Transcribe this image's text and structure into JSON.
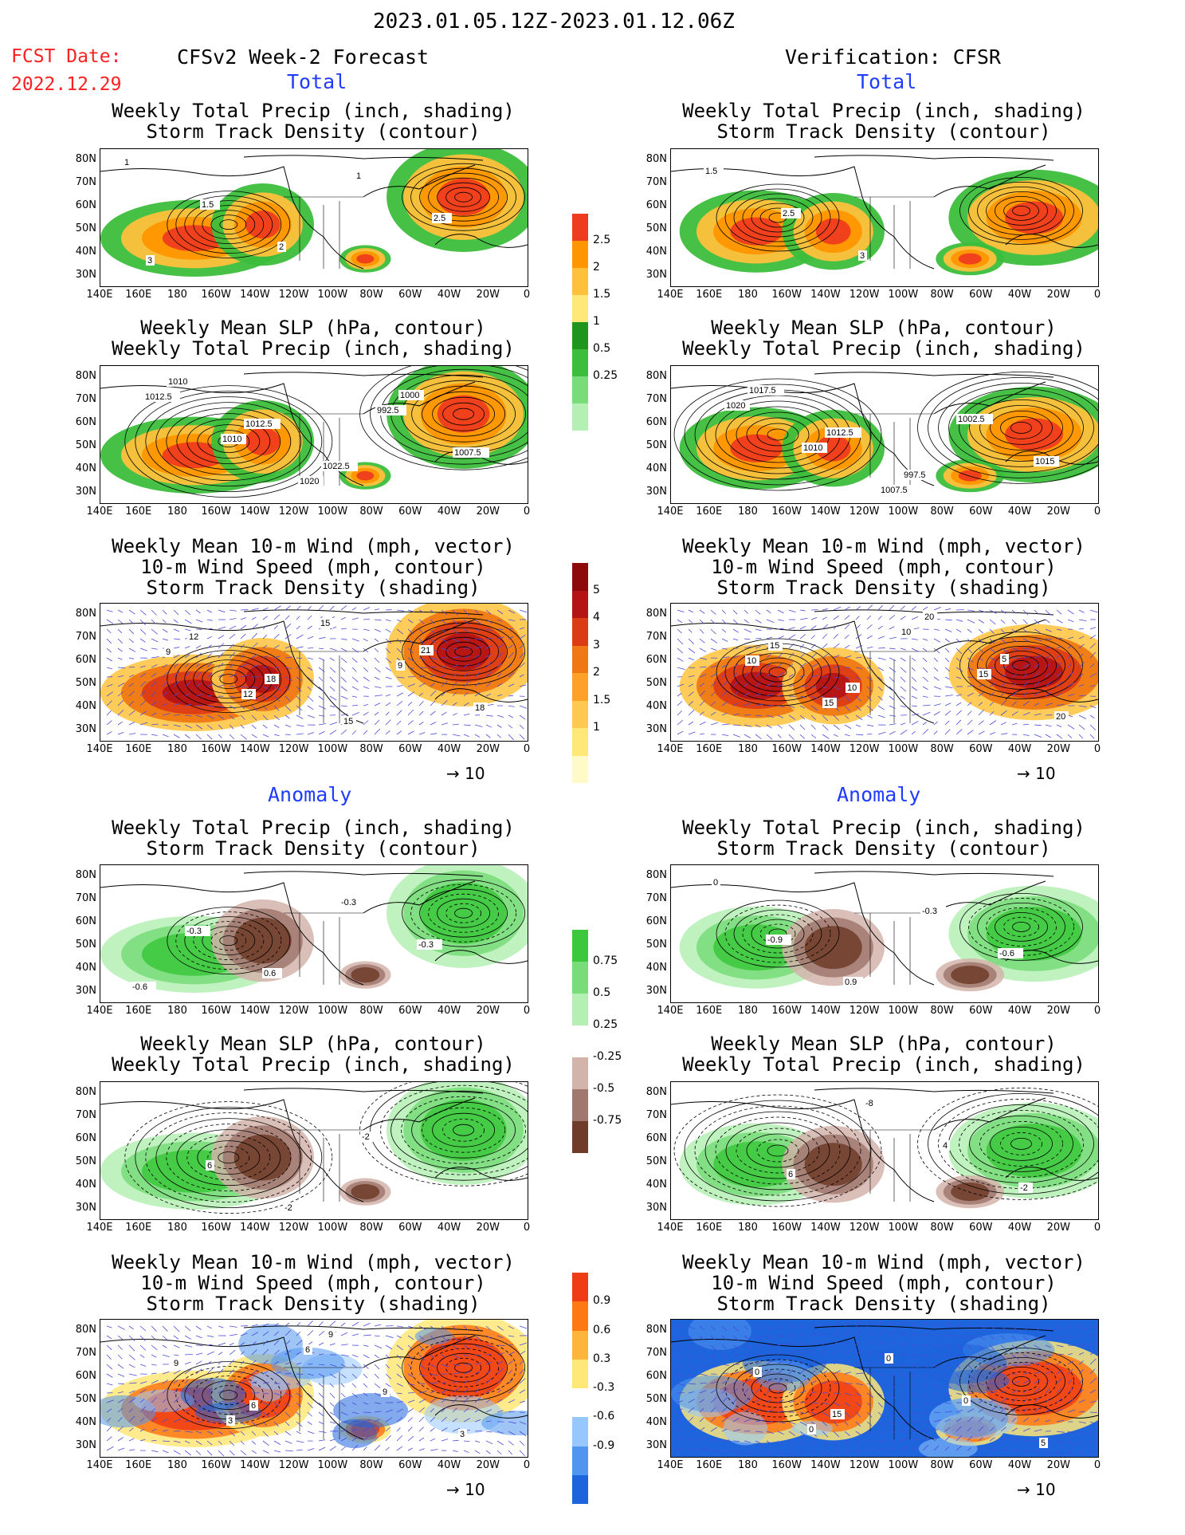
{
  "header": {
    "date_range": "2023.01.05.12Z-2023.01.12.06Z",
    "fcst_label": "FCST Date:",
    "fcst_date": "2022.12.29",
    "left_title": "CFSv2 Week-2 Forecast",
    "right_title": "Verification: CFSR",
    "total_label": "Total",
    "anomaly_label": "Anomaly"
  },
  "panel_titles": {
    "precip": [
      "Weekly Total Precip (inch, shading)",
      "Storm Track Density (contour)"
    ],
    "slp": [
      "Weekly Mean SLP (hPa, contour)",
      "Weekly Total Precip (inch, shading)"
    ],
    "wind": [
      "Weekly Mean 10-m Wind (mph, vector)",
      "10-m Wind Speed (mph, contour)",
      "Storm Track Density (shading)"
    ]
  },
  "axes": {
    "lat_labels": [
      "80N",
      "70N",
      "60N",
      "50N",
      "40N",
      "30N"
    ],
    "lon_labels": [
      "140E",
      "160E",
      "180",
      "160W",
      "140W",
      "120W",
      "100W",
      "80W",
      "60W",
      "40W",
      "20W",
      "0"
    ]
  },
  "vector_scale": "10",
  "colorbars": {
    "total_precip": {
      "labels": [
        "0.25",
        "0.5",
        "1",
        "1.5",
        "2",
        "2.5"
      ],
      "colors": [
        "#b4f0b4",
        "#78dc78",
        "#3cbe3c",
        "#1e961e",
        "#ffe878",
        "#ffc03c",
        "#ff9600",
        "#f03c1e"
      ]
    },
    "total_std": {
      "labels": [
        "1",
        "1.5",
        "2",
        "3",
        "4",
        "5"
      ],
      "colors": [
        "#fffac8",
        "#ffe878",
        "#ffc850",
        "#ffa028",
        "#f07814",
        "#dc3c14",
        "#b41414",
        "#8c0a0a"
      ]
    },
    "anom_precip": {
      "labels": [
        "-0.75",
        "-0.5",
        "-0.25",
        "0.25",
        "0.5",
        "0.75"
      ],
      "colors": [
        "#6e3c28",
        "#a0786e",
        "#d2b4aa",
        "#ffffff",
        "#b4f0b4",
        "#78dc78",
        "#3cc83c"
      ]
    },
    "anom_std": {
      "labels": [
        "-0.9",
        "-0.6",
        "-0.3",
        "0.3",
        "0.6",
        "0.9"
      ],
      "colors": [
        "#1e64dc",
        "#5096f0",
        "#96c8ff",
        "#ffffff",
        "#ffe878",
        "#ffb43c",
        "#ff7814",
        "#f03c14"
      ]
    }
  },
  "contour_labels": {
    "p_tot_l": [
      "1",
      "1.5",
      "2",
      "1",
      "2.5",
      "3"
    ],
    "p_tot_r": [
      "1.5",
      "2.5",
      "3"
    ],
    "s_tot_l": [
      "1012.5",
      "1010",
      "1020",
      "992.5",
      "1007.5",
      "1010",
      "1012.5",
      "1022.5",
      "1000"
    ],
    "s_tot_r": [
      "1020",
      "1010",
      "1007.5",
      "1002.5",
      "1015",
      "1017.5",
      "1012.5",
      "997.5"
    ],
    "w_tot_l": [
      "9",
      "12",
      "15",
      "9",
      "18",
      "12",
      "18",
      "15",
      "21"
    ],
    "w_tot_r": [
      "10",
      "15",
      "10",
      "15",
      "20",
      "15",
      "10",
      "20",
      "5"
    ],
    "p_an_l": [
      "-0.3",
      "0.6",
      "-0.3",
      "-0.3",
      "-0.6"
    ],
    "p_an_r": [
      "-0.9",
      "0.9",
      "-0.3",
      "-0.6",
      "0"
    ],
    "s_an_l": [
      "6",
      "-2",
      "-2"
    ],
    "s_an_r": [
      "6",
      "-8",
      "4",
      "-2"
    ],
    "w_an_l": [
      "3",
      "6",
      "9",
      "3",
      "9",
      "6",
      "9"
    ],
    "w_an_r": [
      "0",
      "0",
      "0",
      "5",
      "0",
      "15"
    ]
  }
}
